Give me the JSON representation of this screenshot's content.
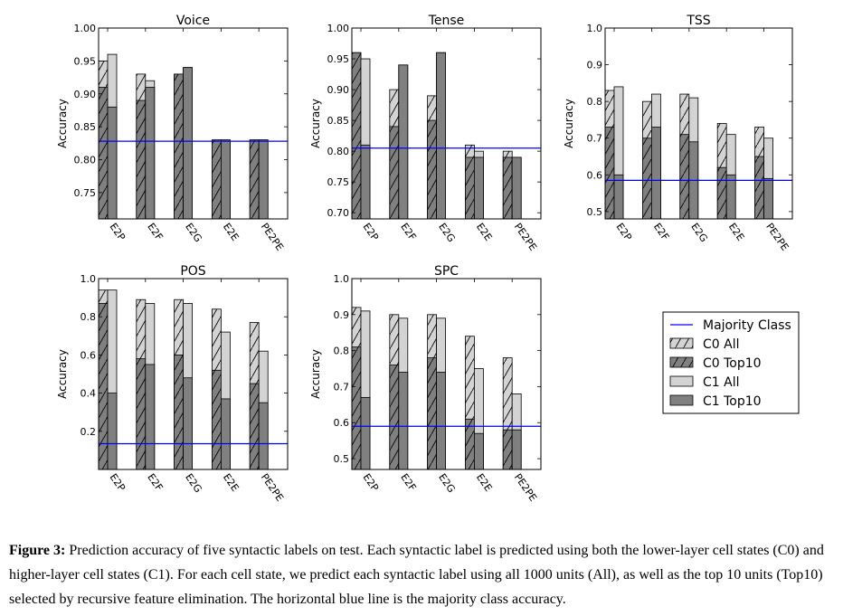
{
  "colors": {
    "c0": "#d3d3d3",
    "c1": "#808080",
    "majority": "#0000ff",
    "hatch": "#000000"
  },
  "legend": {
    "majority_label": "Majority Class",
    "c0_all_label": "C0 All",
    "c0_top10_label": "C0 Top10",
    "c1_all_label": "C1 All",
    "c1_top10_label": "C1 Top10"
  },
  "caption": {
    "label": "Figure 3:",
    "text": " Prediction accuracy of five syntactic labels on test. Each syntactic label is predicted using both the lower-layer cell states (C0) and higher-layer cell states (C1). For each cell state, we predict each syntactic label using all 1000 units (All), as well as the top 10 units (Top10) selected by recursive feature elimination. The horizontal blue line is the majority class accuracy."
  },
  "chart_data": [
    {
      "type": "bar",
      "title": "Voice",
      "ylabel": "Accuracy",
      "categories": [
        "E2P",
        "E2F",
        "E2G",
        "E2E",
        "PE2PE"
      ],
      "ylim": [
        0.71,
        1.0
      ],
      "yticks": [
        "1.00",
        "0.95",
        "0.90",
        "0.85",
        "0.80",
        "0.75"
      ],
      "majority": 0.828,
      "series": [
        {
          "name": "C0 All",
          "values": [
            0.95,
            0.93,
            0.93,
            0.83,
            0.83
          ]
        },
        {
          "name": "C0 Top10",
          "values": [
            0.91,
            0.89,
            0.93,
            0.83,
            0.83
          ]
        },
        {
          "name": "C1 All",
          "values": [
            0.96,
            0.92,
            0.94,
            0.83,
            0.83
          ]
        },
        {
          "name": "C1 Top10",
          "values": [
            0.88,
            0.91,
            0.94,
            0.83,
            0.83
          ]
        }
      ]
    },
    {
      "type": "bar",
      "title": "Tense",
      "ylabel": "Accuracy",
      "categories": [
        "E2P",
        "E2F",
        "E2G",
        "E2E",
        "PE2PE"
      ],
      "ylim": [
        0.69,
        1.0
      ],
      "yticks": [
        "1.00",
        "0.95",
        "0.90",
        "0.85",
        "0.80",
        "0.75",
        "0.70"
      ],
      "majority": 0.805,
      "series": [
        {
          "name": "C0 All",
          "values": [
            0.96,
            0.9,
            0.89,
            0.81,
            0.8
          ]
        },
        {
          "name": "C0 Top10",
          "values": [
            0.96,
            0.84,
            0.85,
            0.79,
            0.79
          ]
        },
        {
          "name": "C1 All",
          "values": [
            0.95,
            0.94,
            0.96,
            0.8,
            0.79
          ]
        },
        {
          "name": "C1 Top10",
          "values": [
            0.81,
            0.94,
            0.96,
            0.79,
            0.79
          ]
        }
      ]
    },
    {
      "type": "bar",
      "title": "TSS",
      "ylabel": "Accuracy",
      "categories": [
        "E2P",
        "E2F",
        "E2G",
        "E2E",
        "PE2PE"
      ],
      "ylim": [
        0.48,
        1.0
      ],
      "yticks": [
        "1.0",
        "0.9",
        "0.8",
        "0.7",
        "0.6",
        "0.5"
      ],
      "majority": 0.585,
      "series": [
        {
          "name": "C0 All",
          "values": [
            0.83,
            0.8,
            0.82,
            0.74,
            0.73
          ]
        },
        {
          "name": "C0 Top10",
          "values": [
            0.73,
            0.7,
            0.71,
            0.62,
            0.65
          ]
        },
        {
          "name": "C1 All",
          "values": [
            0.84,
            0.82,
            0.81,
            0.71,
            0.7
          ]
        },
        {
          "name": "C1 Top10",
          "values": [
            0.6,
            0.73,
            0.69,
            0.6,
            0.59
          ]
        }
      ]
    },
    {
      "type": "bar",
      "title": "POS",
      "ylabel": "Accuracy",
      "categories": [
        "E2P",
        "E2F",
        "E2G",
        "E2E",
        "PE2PE"
      ],
      "ylim": [
        0.0,
        1.0
      ],
      "yticks": [
        "1.0",
        "0.8",
        "0.6",
        "0.4",
        "0.2"
      ],
      "majority": 0.135,
      "series": [
        {
          "name": "C0 All",
          "values": [
            0.94,
            0.89,
            0.89,
            0.84,
            0.77
          ]
        },
        {
          "name": "C0 Top10",
          "values": [
            0.87,
            0.58,
            0.6,
            0.52,
            0.45
          ]
        },
        {
          "name": "C1 All",
          "values": [
            0.94,
            0.87,
            0.87,
            0.72,
            0.62
          ]
        },
        {
          "name": "C1 Top10",
          "values": [
            0.4,
            0.55,
            0.48,
            0.37,
            0.35
          ]
        }
      ]
    },
    {
      "type": "bar",
      "title": "SPC",
      "ylabel": "Accuracy",
      "categories": [
        "E2P",
        "E2F",
        "E2G",
        "E2E",
        "PE2PE"
      ],
      "ylim": [
        0.47,
        1.0
      ],
      "yticks": [
        "1.0",
        "0.9",
        "0.8",
        "0.7",
        "0.6",
        "0.5"
      ],
      "majority": 0.59,
      "series": [
        {
          "name": "C0 All",
          "values": [
            0.92,
            0.9,
            0.9,
            0.84,
            0.78
          ]
        },
        {
          "name": "C0 Top10",
          "values": [
            0.81,
            0.76,
            0.78,
            0.61,
            0.58
          ]
        },
        {
          "name": "C1 All",
          "values": [
            0.91,
            0.89,
            0.89,
            0.75,
            0.68
          ]
        },
        {
          "name": "C1 Top10",
          "values": [
            0.67,
            0.74,
            0.74,
            0.57,
            0.58
          ]
        }
      ]
    }
  ]
}
